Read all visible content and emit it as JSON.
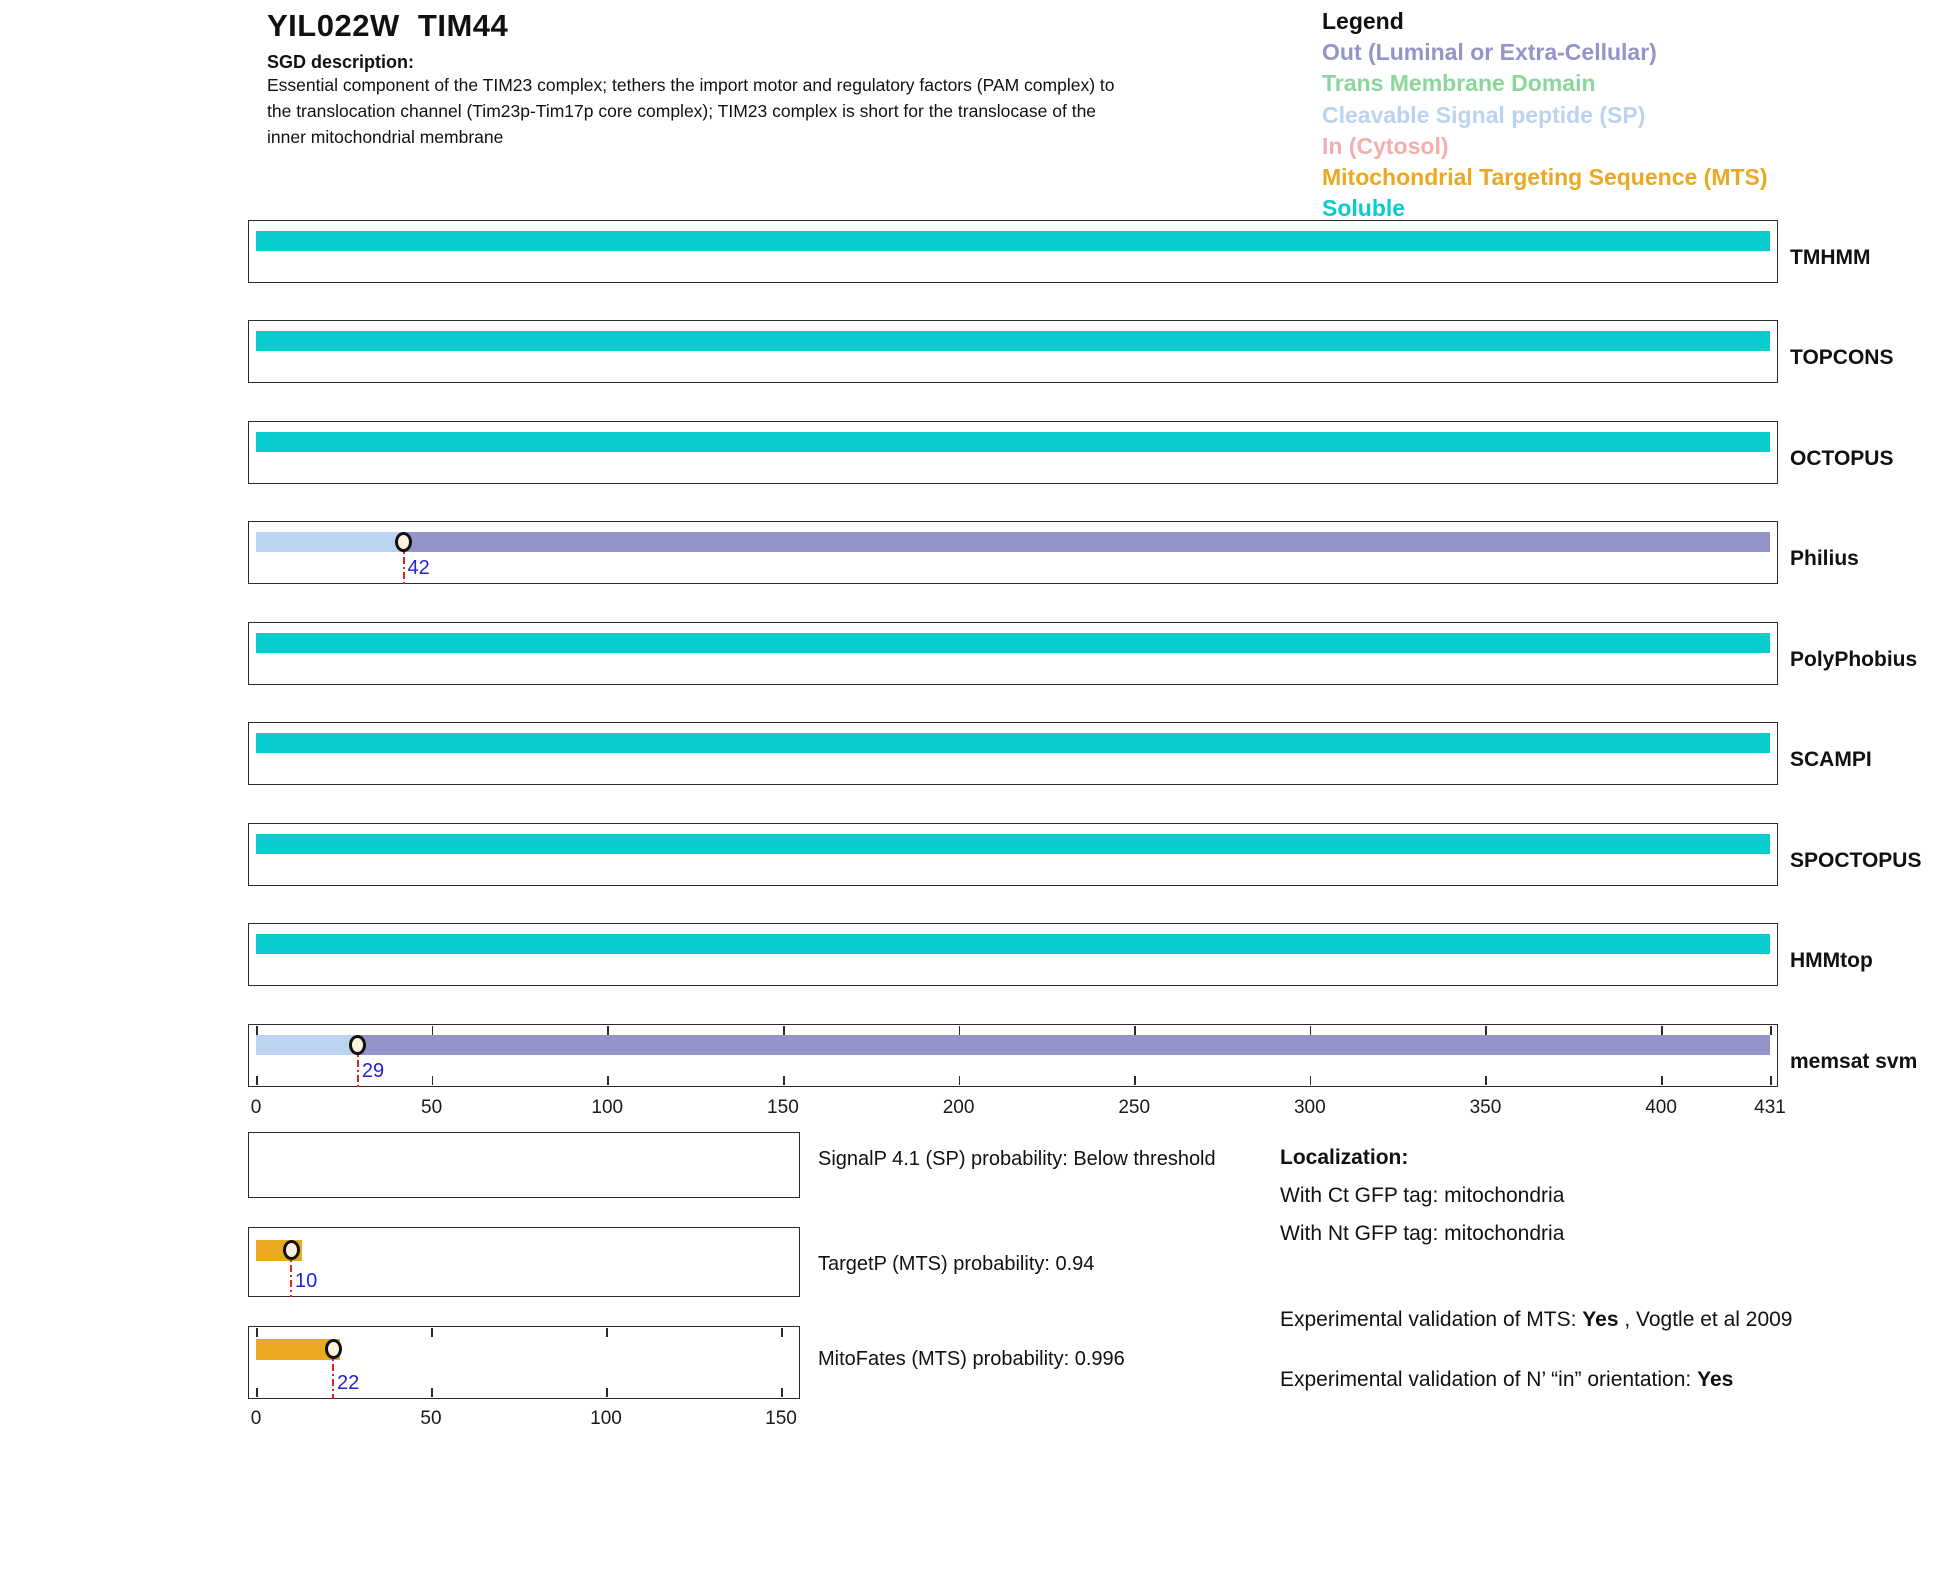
{
  "header": {
    "title": "YIL022W  TIM44",
    "sgd_label": "SGD description:",
    "description_lines": [
      "Essential component of the TIM23 complex; tethers the import motor and regulatory factors (PAM complex) to",
      "the translocation channel (Tim23p-Tim17p core complex); TIM23 complex is short for the translocase of the",
      "inner mitochondrial membrane"
    ]
  },
  "legend": {
    "title": "Legend",
    "items": [
      {
        "key": "out",
        "label": "Out (Luminal or Extra-Cellular)",
        "color": "#9394c7"
      },
      {
        "key": "tm",
        "label": "Trans Membrane Domain",
        "color": "#8cd69b"
      },
      {
        "key": "sp",
        "label": "Cleavable Signal peptide (SP)",
        "color": "#b9d3f0"
      },
      {
        "key": "in",
        "label": "In (Cytosol)",
        "color": "#f2afad"
      },
      {
        "key": "mts",
        "label": "Mitochondrial Targeting Sequence (MTS)",
        "color": "#eaa921"
      },
      {
        "key": "soluble",
        "label": "Soluble",
        "color": "#0acccc"
      }
    ]
  },
  "colors": {
    "soluble": "#0acccc",
    "out": "#9394c7",
    "sp": "#b9d3f0",
    "in": "#f2afad",
    "mts": "#eaa921",
    "tm": "#8cd69b",
    "marker_fill": "#fbf1dc",
    "marker_stroke": "#111111",
    "cut_line": "#e32222",
    "cut_label": "#2323d6"
  },
  "chart_data": {
    "type": "bar",
    "orientation": "horizontal-topology-tracks",
    "residue_axis": {
      "min": 0,
      "max": 431,
      "ticks": [
        0,
        50,
        100,
        150,
        200,
        250,
        300,
        350,
        400,
        431
      ]
    },
    "tracks": [
      {
        "name": "TMHMM",
        "segments": [
          {
            "start": 0,
            "end": 431,
            "class": "soluble"
          }
        ]
      },
      {
        "name": "TOPCONS",
        "segments": [
          {
            "start": 0,
            "end": 431,
            "class": "soluble"
          }
        ]
      },
      {
        "name": "OCTOPUS",
        "segments": [
          {
            "start": 0,
            "end": 431,
            "class": "soluble"
          }
        ]
      },
      {
        "name": "Philius",
        "segments": [
          {
            "start": 0,
            "end": 42,
            "class": "sp"
          },
          {
            "start": 42,
            "end": 431,
            "class": "out"
          }
        ],
        "cut_site": 42
      },
      {
        "name": "PolyPhobius",
        "segments": [
          {
            "start": 0,
            "end": 431,
            "class": "soluble"
          }
        ]
      },
      {
        "name": "SCAMPI",
        "segments": [
          {
            "start": 0,
            "end": 431,
            "class": "soluble"
          }
        ]
      },
      {
        "name": "SPOCTOPUS",
        "segments": [
          {
            "start": 0,
            "end": 431,
            "class": "soluble"
          }
        ]
      },
      {
        "name": "HMMtop",
        "segments": [
          {
            "start": 0,
            "end": 431,
            "class": "soluble"
          }
        ]
      },
      {
        "name": "memsat svm",
        "segments": [
          {
            "start": 0,
            "end": 29,
            "class": "sp"
          },
          {
            "start": 29,
            "end": 431,
            "class": "out"
          }
        ],
        "cut_site": 29,
        "ruler_ticks": true
      }
    ],
    "probability_plots": {
      "axis": {
        "min": 0,
        "max": 150,
        "ticks": [
          0,
          50,
          100,
          150
        ]
      },
      "plots": [
        {
          "name": "SignalP",
          "caption": "SignalP 4.1 (SP) probability: Below threshold",
          "bar": null
        },
        {
          "name": "TargetP",
          "caption": "TargetP (MTS) probability: 0.94",
          "bar": {
            "start": 0,
            "end": 13,
            "class": "mts"
          },
          "cut_site": 10
        },
        {
          "name": "MitoFates",
          "caption": "MitoFates (MTS) probability: 0.996",
          "bar": {
            "start": 0,
            "end": 24,
            "class": "mts"
          },
          "cut_site": 22,
          "ruler_ticks": true
        }
      ]
    }
  },
  "annotations": {
    "localization_title": "Localization:",
    "localization_lines": [
      "With Ct GFP tag: mitochondria",
      "With Nt GFP tag: mitochondria"
    ],
    "validation_mts": {
      "prefix": "Experimental validation of MTS: ",
      "bold": "Yes",
      "suffix": " , Vogtle et al 2009"
    },
    "validation_orientation": {
      "prefix": "Experimental validation of N’ “in” orientation: ",
      "bold": "Yes",
      "suffix": ""
    }
  }
}
